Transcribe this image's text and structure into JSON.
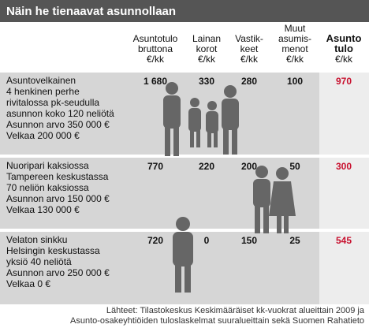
{
  "title": "Näin he tienaavat asunnollaan",
  "columns": [
    {
      "lines": [
        "Asuntotulo",
        "bruttona",
        "€/kk"
      ]
    },
    {
      "lines": [
        "Lainan",
        "korot",
        "€/kk"
      ]
    },
    {
      "lines": [
        "Vastik-",
        "keet",
        "€/kk"
      ]
    },
    {
      "lines": [
        "Muut",
        "asumis-",
        "menot",
        "€/kk"
      ]
    },
    {
      "lines": [
        "Asunto",
        "tulo",
        "€/kk"
      ]
    }
  ],
  "rows": [
    {
      "description": [
        "Asuntovelkainen",
        "4 henkinen perhe",
        "rivitalossa pk-seudulla",
        "asunnon koko 120 neliötä",
        "Asunnon arvo 350 000 €",
        "Velkaa 200 000 €"
      ],
      "values": [
        "1 680",
        "330",
        "280",
        "100",
        "970"
      ]
    },
    {
      "description": [
        "Nuoripari kaksiossa",
        "Tampereen keskustassa",
        "70 neliön kaksiossa",
        "Asunnon arvo 150 000 €",
        "Velkaa 130 000 €"
      ],
      "values": [
        "770",
        "220",
        "200",
        "50",
        "300"
      ]
    },
    {
      "description": [
        "Velaton sinkku",
        "Helsingin keskustassa",
        "yksiö 40 neliötä",
        "Asunnon arvo 250 000 €",
        "Velkaa 0 €"
      ],
      "values": [
        "720",
        "0",
        "150",
        "25",
        "545"
      ]
    }
  ],
  "footer": [
    "Lähteet: Tilastokeskus Keskimääräiset kk-vuokrat alueittain 2009 ja",
    "Asunto-osakeyhtiöiden tuloslaskelmat suuralueittain sekä Suomen Rahatieto"
  ]
}
